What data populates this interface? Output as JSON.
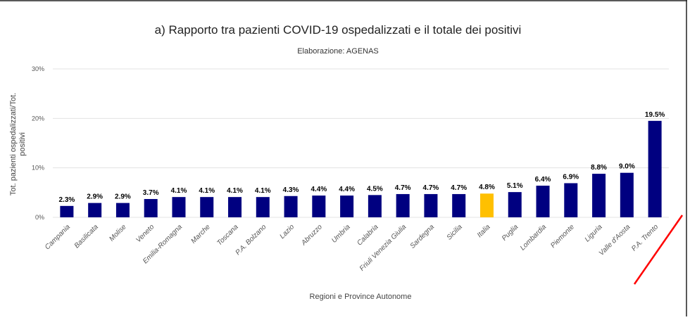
{
  "chart_data": {
    "type": "bar",
    "title": "a) Rapporto tra pazienti COVID-19 ospedalizzati e il totale dei positivi",
    "subtitle": "Elaborazione: AGENAS",
    "xlabel": "Regioni e Province Autonome",
    "ylabel_line1": "Tot. pazienti ospedalizzati/Tot.",
    "ylabel_line2": "positivi",
    "ylim": [
      0,
      30
    ],
    "yticks": [
      0,
      10,
      20,
      30
    ],
    "ytick_labels": [
      "0%",
      "10%",
      "20%",
      "30%"
    ],
    "grid": true,
    "legend": "none",
    "categories": [
      "Campania",
      "Basilicata",
      "Molise",
      "Veneto",
      "Emilia-Romagna",
      "Marche",
      "Toscana",
      "P.A. Bolzano",
      "Lazio",
      "Abruzzo",
      "Umbria",
      "Calabria",
      "Friuli Venezia Giulia",
      "Sardegna",
      "Sicilia",
      "Italia",
      "Puglia",
      "Lombardia",
      "Piemonte",
      "Liguria",
      "Valle d'Aosta",
      "P.A. Trento"
    ],
    "values": [
      2.3,
      2.9,
      2.9,
      3.7,
      4.1,
      4.1,
      4.1,
      4.1,
      4.3,
      4.4,
      4.4,
      4.5,
      4.7,
      4.7,
      4.7,
      4.8,
      5.1,
      6.4,
      6.9,
      8.8,
      9.0,
      19.5
    ],
    "data_labels": [
      "2.3%",
      "2.9%",
      "2.9%",
      "3.7%",
      "4.1%",
      "4.1%",
      "4.1%",
      "4.1%",
      "4.3%",
      "4.4%",
      "4.4%",
      "4.5%",
      "4.7%",
      "4.7%",
      "4.7%",
      "4.8%",
      "5.1%",
      "6.4%",
      "6.9%",
      "8.8%",
      "9.0%",
      "19.5%"
    ],
    "colors": {
      "bar": "#000080",
      "highlight": "#FFC000",
      "highlight_category": "Italia",
      "annotation_line": "#ff0000"
    }
  }
}
